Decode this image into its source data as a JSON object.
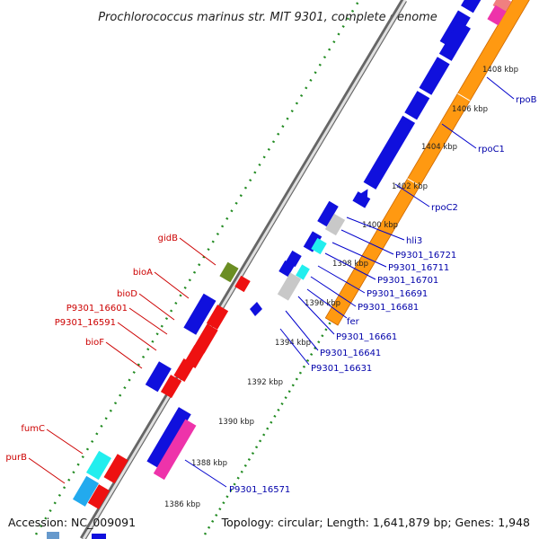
{
  "title": "Prochlorococcus marinus str. MIT 9301, complete genome",
  "footer": {
    "accession": "Accession: NC_009091",
    "summary": "Topology: circular; Length: 1,641,879 bp; Genes: 1,948"
  },
  "kbp_labels": [
    "1408 kbp",
    "1406 kbp",
    "1404 kbp",
    "1402 kbp",
    "1400 kbp",
    "1398 kbp",
    "1396 kbp",
    "1394 kbp",
    "1392 kbp",
    "1390 kbp",
    "1388 kbp",
    "1386 kbp"
  ],
  "left_genes": [
    "gidB",
    "bioA",
    "bioD",
    "P9301_16601",
    "P9301_16591",
    "bioF",
    "fumC",
    "purB"
  ],
  "right_genes": [
    "rpoB",
    "rpoC1",
    "rpoC2",
    "hli3",
    "P9301_16721",
    "P9301_16711",
    "P9301_16701",
    "P9301_16691",
    "P9301_16681",
    "fer",
    "P9301_16661",
    "P9301_16641",
    "P9301_16631",
    "P9301_16571"
  ],
  "colors": {
    "blue": "#1010dd",
    "red": "#ee1111",
    "orange": "#ff9911",
    "cyan": "#22eeee",
    "pink": "#ee33aa",
    "gray": "#c8c8c8",
    "olive": "#6b8e23",
    "dot_green": "#228b22"
  }
}
